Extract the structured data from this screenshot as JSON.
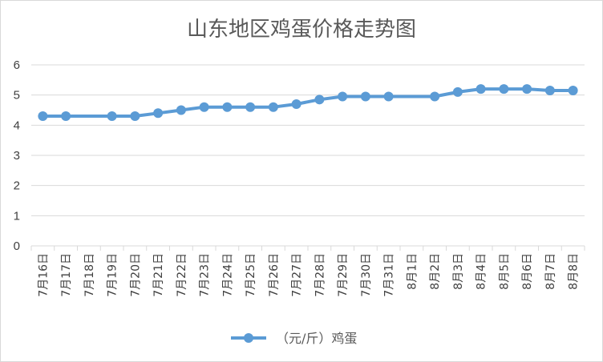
{
  "chart_data": {
    "type": "line",
    "title": "山东地区鸡蛋价格走势图",
    "categories": [
      "7月16日",
      "7月17日",
      "7月18日",
      "7月19日",
      "7月20日",
      "7月21日",
      "7月22日",
      "7月23日",
      "7月24日",
      "7月25日",
      "7月26日",
      "7月27日",
      "7月28日",
      "7月29日",
      "7月30日",
      "7月31日",
      "8月1日",
      "8月2日",
      "8月3日",
      "8月4日",
      "8月5日",
      "8月6日",
      "8月7日",
      "8月8日"
    ],
    "series": [
      {
        "name": "（元/斤）鸡蛋",
        "values": [
          4.3,
          4.3,
          null,
          4.3,
          4.3,
          4.4,
          4.5,
          4.6,
          4.6,
          4.6,
          4.6,
          4.7,
          4.85,
          4.95,
          4.95,
          4.95,
          null,
          4.95,
          5.1,
          5.2,
          5.2,
          5.2,
          5.15,
          5.15
        ]
      }
    ],
    "yticks": [
      "0",
      "1",
      "2",
      "3",
      "4",
      "5",
      "6"
    ],
    "ylim": [
      0,
      6
    ],
    "grid": "horizontal",
    "legend": "bottom",
    "colors": {
      "series": "#5b9bd5",
      "grid": "#d9d9d9",
      "text": "#595959"
    }
  }
}
